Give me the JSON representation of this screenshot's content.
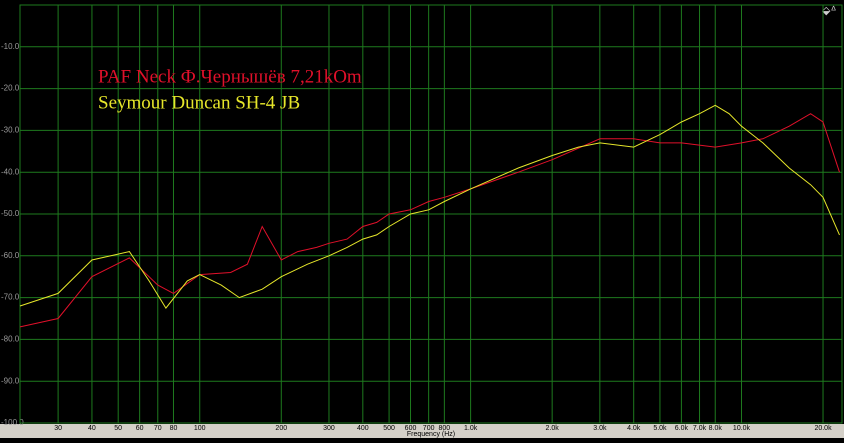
{
  "chart_data": {
    "type": "line",
    "x_label": "Frequency (Hz)",
    "xscale": "log",
    "grid": true,
    "xlim": [
      21.7,
      23500
    ],
    "ylim": [
      -100,
      0
    ],
    "xticks": [
      30,
      40,
      50,
      60,
      70,
      80,
      100,
      200,
      300,
      400,
      500,
      600,
      700,
      800,
      {
        "value": 1000,
        "label": "1.0k"
      },
      {
        "value": 2000,
        "label": "2.0k"
      },
      {
        "value": 3000,
        "label": "3.0k"
      },
      {
        "value": 4000,
        "label": "4.0k"
      },
      {
        "value": 5000,
        "label": "5.0k"
      },
      {
        "value": 6000,
        "label": "6.0k"
      },
      {
        "value": 7000,
        "label": "7.0k"
      },
      {
        "value": 8000,
        "label": "8.0k"
      },
      {
        "value": 10000,
        "label": "10.0k"
      },
      {
        "value": 20000,
        "label": "20.0k"
      }
    ],
    "yticks": [
      {
        "value": -10,
        "label": "-10.0"
      },
      {
        "value": -20,
        "label": "-20.0"
      },
      {
        "value": -30,
        "label": "-30.0"
      },
      {
        "value": -40,
        "label": "-40.0"
      },
      {
        "value": -50,
        "label": "-50.0"
      },
      {
        "value": -60,
        "label": "-60.0"
      },
      {
        "value": -70,
        "label": "-70.0"
      },
      {
        "value": -80,
        "label": "-80.0"
      },
      {
        "value": -90,
        "label": "-90.0"
      },
      {
        "value": -100,
        "label": "-100.0"
      }
    ],
    "series": [
      {
        "name": "PAF Neck Ф.Чернышёв 7,21kOm",
        "color": "#e0102a",
        "x": [
          21.7,
          30,
          40,
          55,
          70,
          80,
          100,
          130,
          150,
          170,
          200,
          230,
          270,
          300,
          350,
          400,
          450,
          500,
          600,
          700,
          800,
          1000,
          1500,
          2000,
          3000,
          4000,
          5000,
          6000,
          8000,
          10000,
          12000,
          15000,
          18000,
          20000,
          23000
        ],
        "values": [
          -77,
          -75,
          -65,
          -60.5,
          -67,
          -69,
          -64.5,
          -64,
          -62,
          -53,
          -61,
          -59,
          -58,
          -57,
          -56,
          -53,
          -52,
          -50,
          -49,
          -47,
          -46,
          -44,
          -40,
          -37,
          -32,
          -32,
          -33,
          -33,
          -34,
          -33,
          -32,
          -29,
          -26,
          -28,
          -40
        ]
      },
      {
        "name": "Seymour Duncan SH-4 JB",
        "color": "#e6e62a",
        "x": [
          21.7,
          30,
          40,
          55,
          65,
          75,
          90,
          100,
          120,
          140,
          170,
          200,
          250,
          300,
          350,
          400,
          450,
          500,
          600,
          700,
          800,
          1000,
          1500,
          2000,
          2500,
          3000,
          4000,
          5000,
          6000,
          7000,
          8000,
          9000,
          10000,
          12000,
          15000,
          18000,
          20000,
          23000
        ],
        "values": [
          -72,
          -69,
          -61,
          -59,
          -66,
          -72.5,
          -66,
          -64.5,
          -67,
          -70,
          -68,
          -65,
          -62,
          -60,
          -58,
          -56,
          -55,
          -53,
          -50,
          -49,
          -47,
          -44,
          -39,
          -36,
          -34,
          -33,
          -34,
          -31,
          -28,
          -26,
          -24,
          -26,
          -29,
          -33,
          -39,
          -43,
          -46,
          -55
        ]
      }
    ]
  }
}
